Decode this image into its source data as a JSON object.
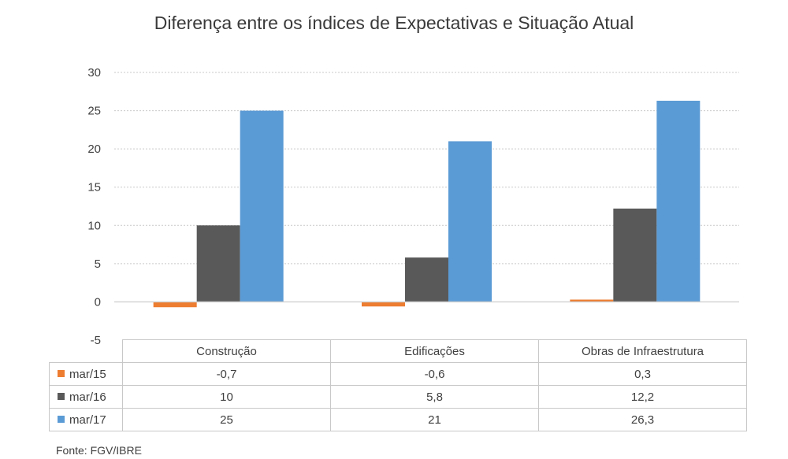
{
  "chart_data": {
    "type": "bar",
    "title": "Diferença entre os índices de Expectativas e Situação Atual",
    "categories": [
      "Construção",
      "Edificações",
      "Obras de Infraestrutura"
    ],
    "series": [
      {
        "name": "mar/15",
        "color": "#ED7D31",
        "values": [
          -0.7,
          -0.6,
          0.3
        ],
        "labels": [
          "-0,7",
          "-0,6",
          "0,3"
        ]
      },
      {
        "name": "mar/16",
        "color": "#595959",
        "values": [
          10,
          5.8,
          12.2
        ],
        "labels": [
          "10",
          "5,8",
          "12,2"
        ]
      },
      {
        "name": "mar/17",
        "color": "#5B9BD5",
        "values": [
          25,
          21,
          26.3
        ],
        "labels": [
          "25",
          "21",
          "26,3"
        ]
      }
    ],
    "ylim": [
      -5,
      30
    ],
    "yticks": [
      30,
      25,
      20,
      15,
      10,
      5,
      0,
      -5
    ],
    "grid": true,
    "legend": "data-table-below"
  },
  "source": "Fonte: FGV/IBRE"
}
